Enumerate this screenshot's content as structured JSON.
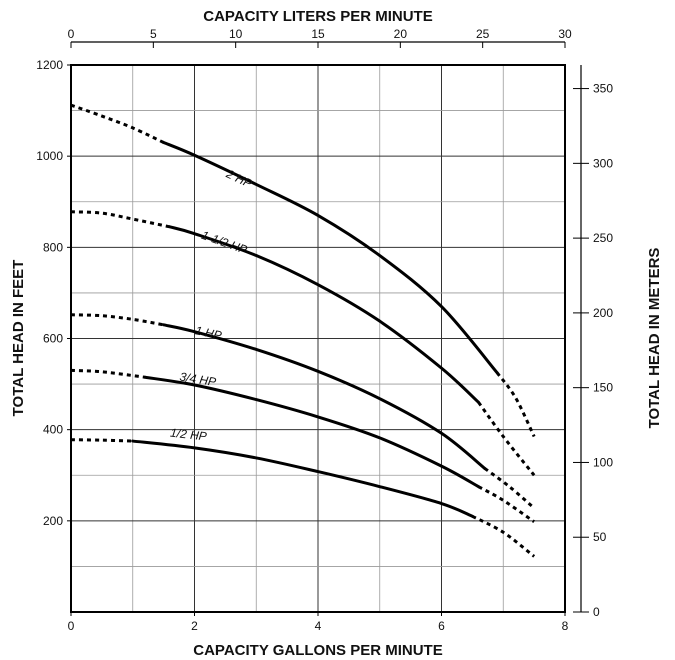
{
  "chart_data": {
    "type": "line",
    "title": "",
    "top_axis_title": "CAPACITY LITERS PER MINUTE",
    "bottom_axis_title": "CAPACITY GALLONS PER MINUTE",
    "left_axis_title": "TOTAL HEAD IN FEET",
    "right_axis_title": "TOTAL HEAD IN METERS",
    "xlim": [
      0,
      8
    ],
    "ylim": [
      0,
      1200
    ],
    "top_xlim": [
      0,
      30
    ],
    "right_ylim": [
      0,
      365.76
    ],
    "x_ticks": [
      0,
      2,
      4,
      6,
      8
    ],
    "x_tick_labels": [
      "0",
      "2",
      "4",
      "6",
      "8"
    ],
    "y_ticks": [
      200,
      400,
      600,
      800,
      1000,
      1200
    ],
    "y_tick_labels": [
      "200",
      "400",
      "600",
      "800",
      "1000",
      "1200"
    ],
    "top_ticks": [
      0,
      5,
      10,
      15,
      20,
      25,
      30
    ],
    "top_tick_labels": [
      "0",
      "5",
      "10",
      "15",
      "20",
      "25",
      "30"
    ],
    "right_ticks": [
      0,
      50,
      100,
      150,
      200,
      250,
      300,
      350
    ],
    "right_tick_labels": [
      "0",
      "50",
      "100",
      "150",
      "200",
      "250",
      "300",
      "350"
    ],
    "grid": true,
    "x_minor_grid": 1,
    "y_minor_grid": 100,
    "legend": "none",
    "series": [
      {
        "name": "2 HP",
        "label_at": {
          "x": 2.5,
          "y": 955
        },
        "dashed_head": [
          [
            0,
            1112
          ],
          [
            0.5,
            1088
          ],
          [
            1,
            1062
          ],
          [
            1.5,
            1030
          ]
        ],
        "solid": [
          [
            1.5,
            1030
          ],
          [
            2,
            1002
          ],
          [
            3,
            938
          ],
          [
            4,
            870
          ],
          [
            5,
            782
          ],
          [
            6,
            670
          ],
          [
            6.9,
            525
          ]
        ],
        "dashed_tail": [
          [
            6.9,
            525
          ],
          [
            7.2,
            470
          ],
          [
            7.5,
            385
          ]
        ]
      },
      {
        "name": "1-1/2 HP",
        "label_at": {
          "x": 2.1,
          "y": 820
        },
        "dashed_head": [
          [
            0,
            878
          ],
          [
            0.5,
            875
          ],
          [
            1,
            862
          ],
          [
            1.6,
            845
          ]
        ],
        "solid": [
          [
            1.6,
            845
          ],
          [
            2,
            830
          ],
          [
            3,
            782
          ],
          [
            4,
            718
          ],
          [
            5,
            638
          ],
          [
            6,
            535
          ],
          [
            6.6,
            460
          ]
        ],
        "dashed_tail": [
          [
            6.6,
            460
          ],
          [
            7,
            385
          ],
          [
            7.5,
            300
          ]
        ]
      },
      {
        "name": "1 HP",
        "label_at": {
          "x": 2.0,
          "y": 610
        },
        "dashed_head": [
          [
            0,
            652
          ],
          [
            0.5,
            650
          ],
          [
            1,
            642
          ],
          [
            1.5,
            630
          ]
        ],
        "solid": [
          [
            1.5,
            630
          ],
          [
            2,
            615
          ],
          [
            3,
            576
          ],
          [
            4,
            528
          ],
          [
            5,
            468
          ],
          [
            6,
            392
          ],
          [
            6.7,
            315
          ]
        ],
        "dashed_tail": [
          [
            6.7,
            315
          ],
          [
            7.1,
            275
          ],
          [
            7.5,
            228
          ]
        ]
      },
      {
        "name": "3/4 HP",
        "label_at": {
          "x": 1.75,
          "y": 508
        },
        "dashed_head": [
          [
            0,
            530
          ],
          [
            0.5,
            527
          ],
          [
            1.2,
            515
          ]
        ],
        "solid": [
          [
            1.2,
            515
          ],
          [
            2,
            498
          ],
          [
            3,
            466
          ],
          [
            4,
            428
          ],
          [
            5,
            382
          ],
          [
            6,
            320
          ],
          [
            6.6,
            275
          ]
        ],
        "dashed_tail": [
          [
            6.6,
            275
          ],
          [
            7,
            245
          ],
          [
            7.5,
            198
          ]
        ]
      },
      {
        "name": "1/2 HP",
        "label_at": {
          "x": 1.6,
          "y": 385
        },
        "dashed_head": [
          [
            0,
            378
          ],
          [
            0.5,
            377
          ],
          [
            1,
            375
          ]
        ],
        "solid": [
          [
            1,
            375
          ],
          [
            2,
            360
          ],
          [
            3,
            338
          ],
          [
            4,
            308
          ],
          [
            5,
            275
          ],
          [
            6,
            238
          ],
          [
            6.5,
            210
          ]
        ],
        "dashed_tail": [
          [
            6.5,
            210
          ],
          [
            7,
            175
          ],
          [
            7.5,
            122
          ]
        ]
      }
    ]
  }
}
